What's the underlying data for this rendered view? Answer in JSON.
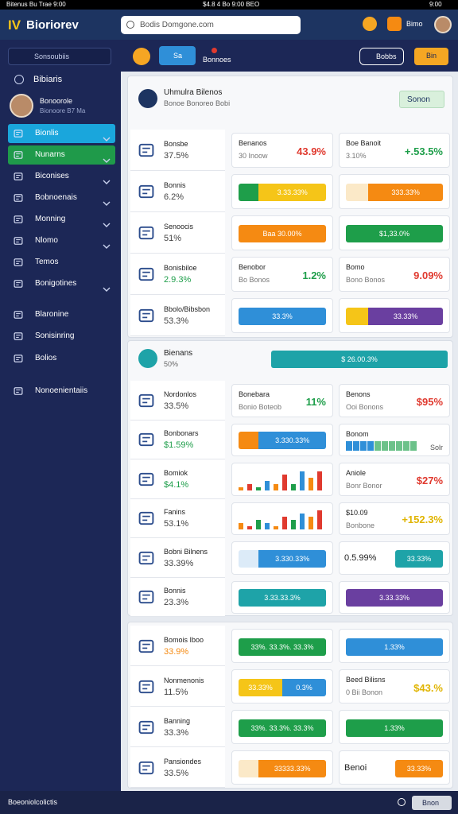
{
  "status_bar": {
    "left": "Bitenus Bu Trae 9:00",
    "center": "$4.8 4 Bo 9:00 BEO",
    "right": "9:00"
  },
  "header": {
    "logo_mark": "IV",
    "logo_text": "Bioriorev",
    "search": "Bodis Domgone.com",
    "user": "Bimo"
  },
  "sidebar": {
    "search": "Sonsoubiis",
    "section": "Bibiaris",
    "profile_name": "Bonoorole",
    "profile_sub": "Bionoore B7 Ma",
    "items": [
      "Bionlis",
      "Nunarns",
      "Biconises",
      "Bobnoenais",
      "Monning",
      "Nlomo",
      "Temos",
      "Bonigotines",
      "Blaronine",
      "Sonisinring",
      "Bolios",
      "Nonoenientaiis"
    ]
  },
  "toolbar": {
    "primary": "Sa",
    "label": "Bonnoes",
    "outline": "Bobbs",
    "accent": "Bin"
  },
  "panels": [
    {
      "title": "Uhmulra Bilenos",
      "subtitle": "Bonoe Bonoreo Bobi",
      "button": "Sonon",
      "rows": [
        {
          "left": {
            "label": "Bonsbe",
            "value": "37.5%"
          },
          "mid": {
            "title": "Benanos",
            "sub": "30 Inoow",
            "value": "43.9%",
            "color": "#e03a2f"
          },
          "right": {
            "title": "Boe Banoit",
            "sub": "3.10%",
            "value": "+.53.5%",
            "color": "#1e9e4a"
          }
        },
        {
          "left": {
            "label": "Bonnis",
            "value": "6.2%"
          },
          "mid": {
            "segments": [
              {
                "color": "#1e9e4a"
              },
              {
                "color": "#f5c518",
                "label": "3.33.33%"
              }
            ]
          },
          "right": {
            "segments": [
              {
                "color": "#fbe9c8"
              },
              {
                "color": "#f58a12",
                "label": "333.33%"
              }
            ]
          }
        },
        {
          "left": {
            "label": "Senoocis",
            "value": "51%"
          },
          "mid": {
            "segments": [
              {
                "color": "#f58a12",
                "label": "Baa 30.00%"
              }
            ]
          },
          "right": {
            "segments": [
              {
                "color": "#1e9e4a",
                "label": "$1,33.0%"
              }
            ]
          }
        },
        {
          "left": {
            "label": "Bonisbiloe",
            "value": "2.9.3%",
            "color": "#1e9e4a"
          },
          "mid": {
            "title": "Benobor",
            "sub": "Bo Bonos",
            "value": "1.2%",
            "color": "#1e9e4a"
          },
          "right": {
            "title": "Bomo",
            "sub": "Bono Bonos",
            "value": "9.09%",
            "color": "#e03a2f"
          }
        },
        {
          "left": {
            "label": "Bbolo/Bibsbon",
            "value": "53.3%"
          },
          "mid": {
            "segments": [
              {
                "color": "#2f8fd8",
                "label": "33.3%"
              }
            ]
          },
          "right": {
            "segments": [
              {
                "color": "#f5c518"
              },
              {
                "color": "#6a3fa0",
                "label": "33.33%"
              }
            ]
          }
        }
      ]
    },
    {
      "title": "Bienans",
      "subtitle": "50%",
      "bar": {
        "segments": [
          {
            "color": "#1ea3a8",
            "label": "$ 26.00.3%"
          }
        ]
      },
      "rows": [
        {
          "left": {
            "label": "Nordonlos",
            "value": "33.5%"
          },
          "mid": {
            "title": "Bonebara",
            "sub": "Bonio Boteob",
            "value": "11%",
            "color": "#1e9e4a"
          },
          "right": {
            "title": "Benons",
            "sub": "Ooi Bonons",
            "value": "$95%",
            "color": "#e03a2f"
          }
        },
        {
          "left": {
            "label": "Bonbonars",
            "value": "$1.59%",
            "color": "#1e9e4a"
          },
          "mid": {
            "segments": [
              {
                "color": "#f58a12"
              },
              {
                "color": "#2f8fd8",
                "label": "3.330.33%"
              }
            ]
          },
          "right": {
            "title": "Bonom",
            "sub": "Solr",
            "bars": [
              3,
              3,
              3,
              3,
              3,
              3,
              3,
              3,
              3,
              3
            ]
          }
        },
        {
          "left": {
            "label": "Bomiok",
            "value": "$4.1%",
            "color": "#1e9e4a"
          },
          "mid": {
            "bars": [
              1,
              2,
              1,
              3,
              2,
              5,
              2,
              6,
              4,
              6
            ]
          },
          "right": {
            "title": "Aniole",
            "sub": "Bonr Bonor",
            "value": "$27%",
            "color": "#e03a2f"
          }
        },
        {
          "left": {
            "label": "Fanins",
            "value": "53.1%"
          },
          "mid": {
            "bars": [
              2,
              1,
              3,
              2,
              1,
              4,
              3,
              5,
              4,
              6
            ]
          },
          "right": {
            "title": "$10.09",
            "sub": "Bonbone",
            "value": "+152.3%",
            "color": "#e0b400"
          }
        },
        {
          "left": {
            "label": "Bobni Bilnens",
            "value": "33.39%"
          },
          "mid": {
            "segments": [
              {
                "color": "#dcebf8"
              },
              {
                "color": "#2f8fd8",
                "label": "3.330.33%"
              }
            ]
          },
          "right": {
            "title": "0.5.99%",
            "segments": [
              {
                "color": "#1ea3a8",
                "label": "33.33%"
              }
            ]
          }
        },
        {
          "left": {
            "label": "Bonnis",
            "value": "23.3%"
          },
          "mid": {
            "segments": [
              {
                "color": "#1ea3a8",
                "label": "3.33.33.3%"
              }
            ]
          },
          "right": {
            "segments": [
              {
                "color": "#6a3fa0",
                "label": "3.33.33%"
              }
            ]
          }
        }
      ]
    },
    {
      "rows": [
        {
          "left": {
            "label": "Bomois Iboo",
            "value": "33.9%",
            "color": "#f58a12"
          },
          "mid": {
            "segments": [
              {
                "color": "#1e9e4a",
                "label": "33%. 33.3%. 33.3%"
              }
            ]
          },
          "right": {
            "segments": [
              {
                "color": "#2f8fd8",
                "label": "1.33%"
              }
            ]
          }
        },
        {
          "left": {
            "label": "Nonmenonis",
            "value": "11.5%"
          },
          "mid": {
            "segments": [
              {
                "color": "#f5c518",
                "label": "33.33%"
              },
              {
                "color": "#2f8fd8",
                "label": "0.3%"
              }
            ]
          },
          "right": {
            "title": "Beed Bilisns",
            "sub": "0 Bii Bonon",
            "value": "$43.%",
            "color": "#e0b400"
          }
        },
        {
          "left": {
            "label": "Banning",
            "value": "33.3%"
          },
          "mid": {
            "segments": [
              {
                "color": "#1e9e4a",
                "label": "33%. 33.3%. 33.3%"
              }
            ]
          },
          "right": {
            "segments": [
              {
                "color": "#1e9e4a",
                "label": "1.33%"
              }
            ]
          }
        },
        {
          "left": {
            "label": "Pansiondes",
            "value": "33.5%"
          },
          "mid": {
            "segments": [
              {
                "color": "#fbe9c8"
              },
              {
                "color": "#f58a12",
                "label": "33333.33%"
              }
            ]
          },
          "right": {
            "title": "Benoi",
            "segments": [
              {
                "color": "#f58a12",
                "label": "33.33%"
              }
            ]
          }
        }
      ]
    }
  ],
  "footer": {
    "text": "Boeoniolcolictis",
    "button": "Bnon"
  }
}
